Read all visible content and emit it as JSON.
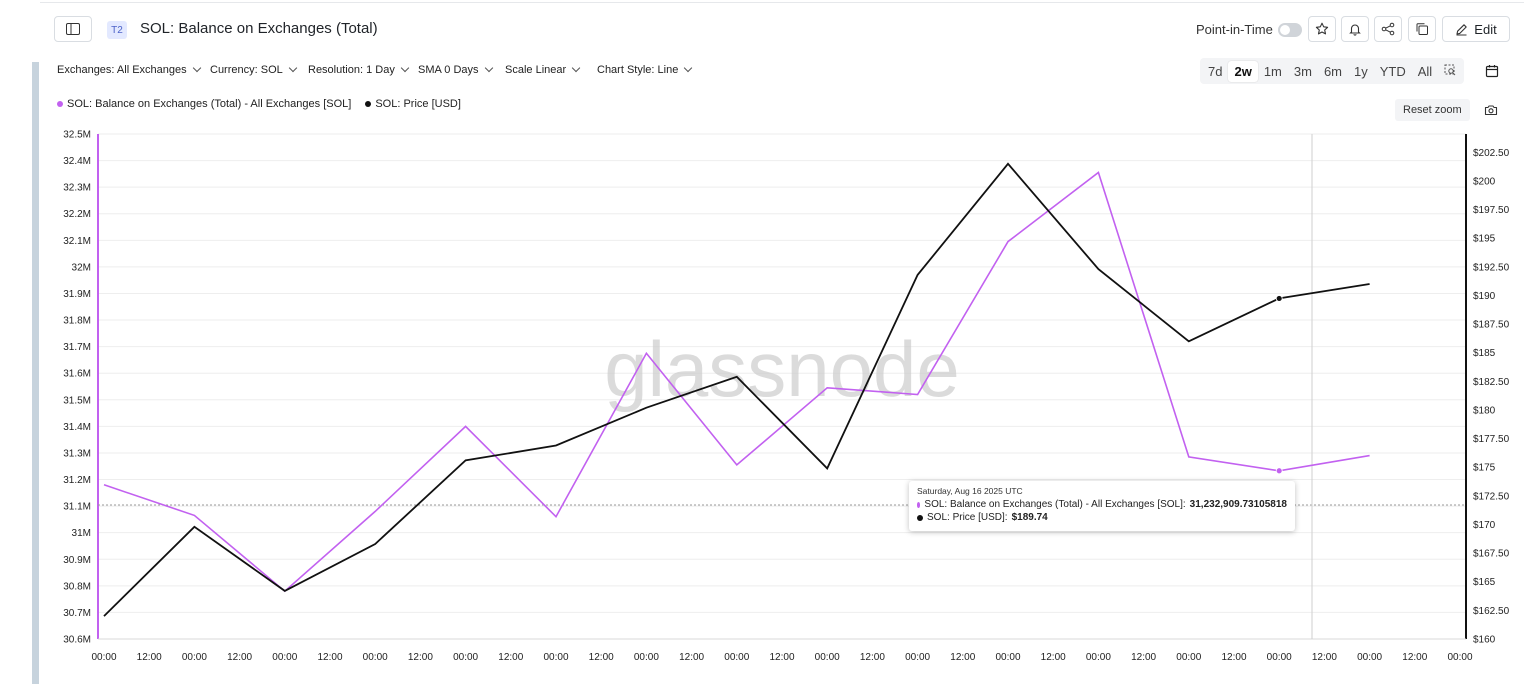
{
  "header": {
    "badge": "T2",
    "title": "SOL: Balance on Exchanges (Total)",
    "point_in_time_label": "Point-in-Time",
    "edit_label": "Edit"
  },
  "toolbar": {
    "exchanges": "Exchanges: All Exchanges",
    "currency": "Currency: SOL",
    "resolution": "Resolution: 1 Day",
    "sma": "SMA 0 Days",
    "scale": "Scale Linear",
    "chart_style": "Chart Style: Line"
  },
  "ranges": [
    "7d",
    "2w",
    "1m",
    "3m",
    "6m",
    "1y",
    "YTD",
    "All"
  ],
  "active_range": "2w",
  "reset_zoom_label": "Reset zoom",
  "watermark": "glassnode",
  "tooltip": {
    "date": "Saturday, Aug 16 2025 UTC",
    "balance_label": "SOL: Balance on Exchanges (Total) - All Exchanges [SOL]:",
    "balance_value": "31,232,909.73105818",
    "price_label": "SOL: Price [USD]:",
    "price_value": "$189.74"
  },
  "chart_data": {
    "type": "line",
    "x_tick_labels": [
      "00:00",
      "12:00",
      "00:00",
      "12:00",
      "00:00",
      "12:00",
      "00:00",
      "12:00",
      "00:00",
      "12:00",
      "00:00",
      "12:00",
      "00:00",
      "12:00",
      "00:00",
      "12:00",
      "00:00",
      "12:00",
      "00:00",
      "12:00",
      "00:00",
      "12:00",
      "00:00",
      "12:00",
      "00:00",
      "12:00",
      "00:00",
      "12:00",
      "00:00",
      "12:00",
      "00:00"
    ],
    "y_left_ticks": [
      "32.5M",
      "32.4M",
      "32.3M",
      "32.2M",
      "32.1M",
      "32M",
      "31.9M",
      "31.8M",
      "31.7M",
      "31.6M",
      "31.5M",
      "31.4M",
      "31.3M",
      "31.2M",
      "31.1M",
      "31M",
      "30.9M",
      "30.8M",
      "30.7M",
      "30.6M"
    ],
    "y_left_range": [
      30600000,
      32500000
    ],
    "y_right_ticks": [
      "$202.50",
      "$200",
      "$197.50",
      "$195",
      "$192.50",
      "$190",
      "$187.50",
      "$185",
      "$182.50",
      "$180",
      "$177.50",
      "$175",
      "$172.50",
      "$170",
      "$167.50",
      "$165",
      "$162.50",
      "$160"
    ],
    "y_right_range": [
      160,
      204.1
    ],
    "grid": true,
    "legend_position": "top-left",
    "series": [
      {
        "name": "SOL: Balance on Exchanges (Total) - All Exchanges [SOL]",
        "axis": "left",
        "color": "#c261f0",
        "values": [
          31180000,
          31065000,
          30780000,
          31080000,
          31400000,
          31060000,
          31675000,
          31255000,
          31545000,
          31520000,
          32095000,
          32355000,
          31285000,
          31232910,
          31290000
        ]
      },
      {
        "name": "SOL: Price [USD]",
        "axis": "right",
        "color": "#111111",
        "values": [
          162.0,
          169.8,
          164.2,
          168.3,
          175.6,
          176.9,
          180.2,
          182.9,
          174.9,
          191.8,
          201.5,
          192.3,
          186.0,
          189.74,
          191.0
        ]
      }
    ]
  }
}
